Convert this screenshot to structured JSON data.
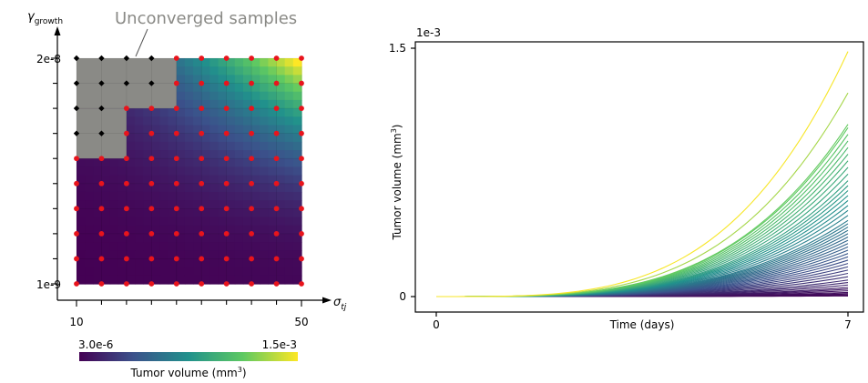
{
  "heatmap": {
    "y_axis_symbol": "γ",
    "y_axis_subscript": "growth",
    "x_axis_symbol": "σ",
    "x_axis_subscript": "tj",
    "y_tick_top": "2e-8",
    "y_tick_bottom": "1e-9",
    "x_tick_left": "10",
    "x_tick_right": "50",
    "annotation": "Unconverged samples",
    "colorbar_min_label": "3.0e-6",
    "colorbar_max_label": "1.5e-3",
    "colorbar_title": "Tumor volume (mm",
    "colorbar_title_sup": "3",
    "colorbar_title_end": ")"
  },
  "curves": {
    "exponent_label": "1e-3",
    "y_tick_top": "1.5",
    "y_tick_bottom": "0",
    "x_tick_left": "0",
    "x_tick_right": "7",
    "xlabel": "Time (days)",
    "ylabel_main": "Tumor volume (mm",
    "ylabel_sup": "3",
    "ylabel_end": ")"
  },
  "colors": {
    "sample_converged": "#e8141c",
    "sample_unconverged": "#000000",
    "mask": "#8a8a86",
    "annotation_text": "#8a8a86"
  },
  "chart_data": [
    {
      "type": "heatmap",
      "title": "",
      "xlabel": "σ_tj",
      "ylabel": "γ_growth",
      "x_range": [
        10,
        50
      ],
      "y_range": [
        1e-09,
        2e-08
      ],
      "colorbar_range": [
        3e-06,
        0.0015
      ],
      "colorbar_label": "Tumor volume (mm^3)",
      "grid_columns": 10,
      "grid_rows": 10,
      "unconverged_cells": [
        [
          0,
          0
        ],
        [
          1,
          0
        ],
        [
          2,
          0
        ],
        [
          3,
          0
        ],
        [
          0,
          1
        ],
        [
          1,
          1
        ],
        [
          2,
          1
        ],
        [
          3,
          1
        ],
        [
          0,
          2
        ],
        [
          1,
          2
        ],
        [
          0,
          3
        ],
        [
          1,
          3
        ]
      ],
      "annotation": "Unconverged samples"
    },
    {
      "type": "line",
      "title": "",
      "xlabel": "Time (days)",
      "ylabel": "Tumor volume (mm^3)",
      "xlim": [
        0,
        7
      ],
      "ylim": [
        0,
        0.0015
      ],
      "y_multiplier_label": "1e-3",
      "series_final_values_e3": [
        1.48,
        1.23,
        1.04,
        1.02,
        0.98,
        0.94,
        0.9,
        0.86,
        0.82,
        0.78,
        0.74,
        0.7,
        0.67,
        0.64,
        0.61,
        0.58,
        0.55,
        0.52,
        0.49,
        0.46,
        0.44,
        0.42,
        0.4,
        0.38,
        0.36,
        0.34,
        0.32,
        0.3,
        0.28,
        0.26,
        0.24,
        0.22,
        0.2,
        0.18,
        0.16,
        0.14,
        0.12,
        0.1,
        0.085,
        0.07,
        0.055,
        0.045,
        0.035,
        0.025,
        0.018,
        0.012,
        0.008,
        0.004
      ]
    }
  ]
}
